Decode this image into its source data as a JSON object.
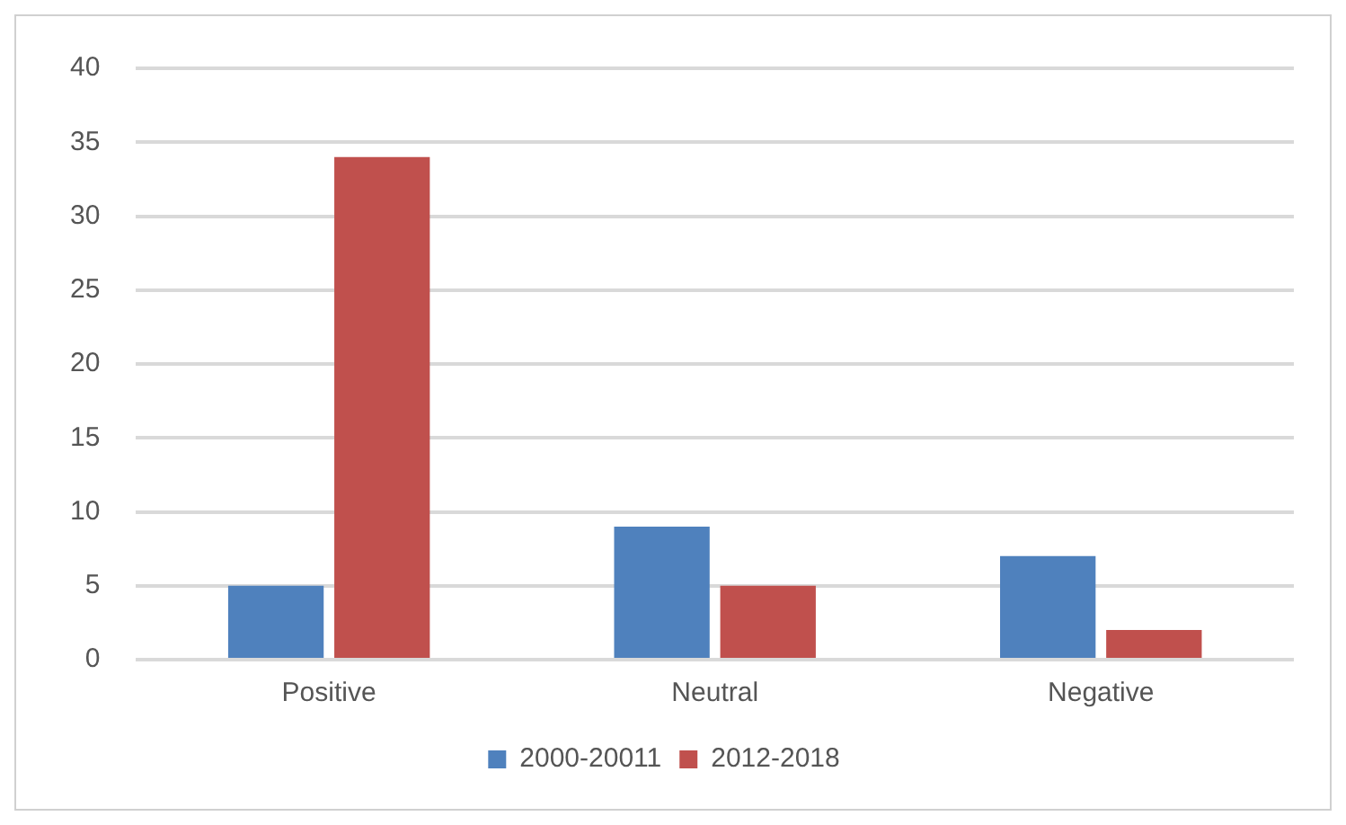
{
  "chart_data": {
    "type": "bar",
    "categories": [
      "Positive",
      "Neutral",
      "Negative"
    ],
    "series": [
      {
        "name": "2000-20011",
        "color": "#4f81bd",
        "values": [
          5,
          9,
          7
        ]
      },
      {
        "name": "2012-2018",
        "color": "#c0504d",
        "values": [
          34,
          5,
          2
        ]
      }
    ],
    "ylim": [
      0,
      40
    ],
    "yticks": [
      0,
      5,
      10,
      15,
      20,
      25,
      30,
      35,
      40
    ],
    "grid": "y",
    "legend": "bottom"
  }
}
